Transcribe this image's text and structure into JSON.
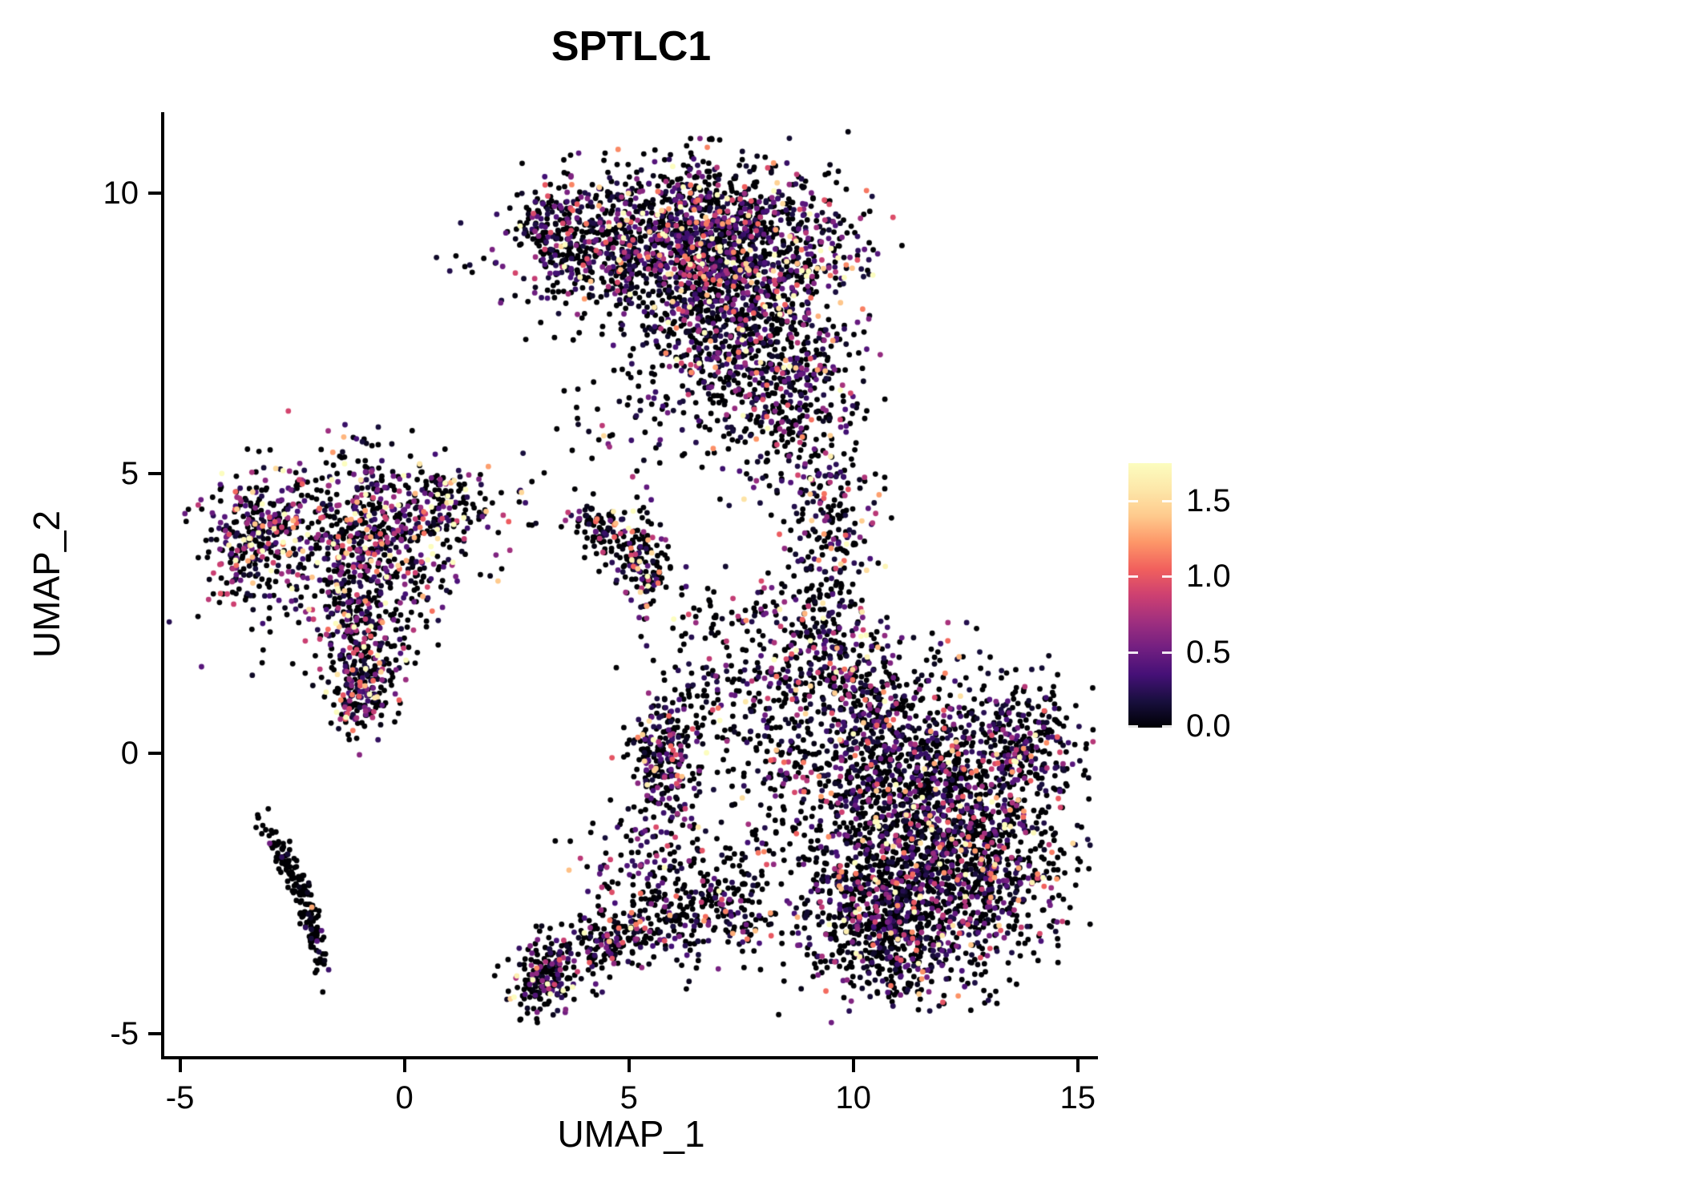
{
  "chart_data": {
    "type": "scatter",
    "title": "SPTLC1",
    "xlabel": "UMAP_1",
    "ylabel": "UMAP_2",
    "xlim": [
      -5.35,
      15.45
    ],
    "ylim": [
      -5.4,
      11.45
    ],
    "x_ticks": [
      {
        "value": -5,
        "label": "-5"
      },
      {
        "value": 0,
        "label": "0"
      },
      {
        "value": 5,
        "label": "5"
      },
      {
        "value": 10,
        "label": "10"
      },
      {
        "value": 15,
        "label": "15"
      }
    ],
    "y_ticks": [
      {
        "value": -5,
        "label": "-5"
      },
      {
        "value": 0,
        "label": "0"
      },
      {
        "value": 5,
        "label": "5"
      },
      {
        "value": 10,
        "label": "10"
      }
    ],
    "grid": false,
    "legend_position": "right",
    "colorbar": {
      "domain": [
        0,
        1.75
      ],
      "ticks": [
        {
          "value": 1.5,
          "label": "1.5"
        },
        {
          "value": 1.0,
          "label": "1.0"
        },
        {
          "value": 0.5,
          "label": "0.5"
        },
        {
          "value": 0.0,
          "label": "0.0"
        }
      ],
      "colormap": "magma",
      "stops": [
        [
          0.0,
          "#000004"
        ],
        [
          0.1,
          "#180f3e"
        ],
        [
          0.2,
          "#451077"
        ],
        [
          0.3,
          "#721f81"
        ],
        [
          0.4,
          "#9f2f7f"
        ],
        [
          0.5,
          "#cd4071"
        ],
        [
          0.6,
          "#f1605d"
        ],
        [
          0.7,
          "#fd9668"
        ],
        [
          0.8,
          "#feca8d"
        ],
        [
          0.9,
          "#fde7a9"
        ],
        [
          1.0,
          "#fcfdbf"
        ]
      ]
    },
    "point_radius_px": 3.4,
    "seed": 42,
    "n_points_approx": 9800,
    "clusters": [
      {
        "name": "top-main-1",
        "n": 900,
        "cx": 7.6,
        "cy": 9.0,
        "sx": 1.25,
        "sy": 0.75,
        "rot": 0,
        "zero": 0.45,
        "mean": 0.5
      },
      {
        "name": "top-main-2",
        "n": 600,
        "cx": 6.0,
        "cy": 9.3,
        "sx": 1.1,
        "sy": 0.6,
        "rot": 0,
        "zero": 0.45,
        "mean": 0.5
      },
      {
        "name": "top-main-3",
        "n": 520,
        "cx": 7.0,
        "cy": 7.6,
        "sx": 1.0,
        "sy": 0.8,
        "rot": 0,
        "zero": 0.5,
        "mean": 0.5
      },
      {
        "name": "top-right-lobe",
        "n": 380,
        "cx": 8.5,
        "cy": 6.6,
        "sx": 0.75,
        "sy": 0.9,
        "rot": 0,
        "zero": 0.5,
        "mean": 0.5
      },
      {
        "name": "top-left-tail",
        "n": 260,
        "cx": 4.1,
        "cy": 8.9,
        "sx": 0.85,
        "sy": 0.65,
        "rot": 0,
        "zero": 0.5,
        "mean": 0.45
      },
      {
        "name": "top-left-streak",
        "n": 130,
        "cx": 3.3,
        "cy": 9.4,
        "sx": 0.45,
        "sy": 0.45,
        "rot": 0,
        "zero": 0.5,
        "mean": 0.45
      },
      {
        "name": "top-under-sparse",
        "n": 90,
        "cx": 6.2,
        "cy": 6.2,
        "sx": 1.3,
        "sy": 0.7,
        "rot": 0,
        "zero": 0.55,
        "mean": 0.45
      },
      {
        "name": "right-main-1",
        "n": 1300,
        "cx": 11.5,
        "cy": -0.6,
        "sx": 1.5,
        "sy": 1.05,
        "rot": 0,
        "zero": 0.55,
        "mean": 0.45
      },
      {
        "name": "right-main-2",
        "n": 800,
        "cx": 12.4,
        "cy": -2.2,
        "sx": 1.15,
        "sy": 0.85,
        "rot": 0,
        "zero": 0.55,
        "mean": 0.45
      },
      {
        "name": "right-lower-left",
        "n": 450,
        "cx": 10.3,
        "cy": -2.7,
        "sx": 0.9,
        "sy": 0.75,
        "rot": 0,
        "zero": 0.55,
        "mean": 0.45
      },
      {
        "name": "right-tip",
        "n": 200,
        "cx": 13.8,
        "cy": 0.2,
        "sx": 0.55,
        "sy": 0.5,
        "rot": 0,
        "zero": 0.55,
        "mean": 0.45
      },
      {
        "name": "right-upper",
        "n": 280,
        "cx": 10.1,
        "cy": 0.9,
        "sx": 0.75,
        "sy": 0.75,
        "rot": 0,
        "zero": 0.5,
        "mean": 0.5
      },
      {
        "name": "right-bottom",
        "n": 220,
        "cx": 11.1,
        "cy": -3.5,
        "sx": 0.85,
        "sy": 0.45,
        "rot": 0,
        "zero": 0.6,
        "mean": 0.4
      },
      {
        "name": "bridge-upper",
        "n": 260,
        "cx": 9.45,
        "cy": 3.9,
        "sx": 0.5,
        "sy": 1.25,
        "rot": 0,
        "zero": 0.5,
        "mean": 0.5
      },
      {
        "name": "bridge-lower",
        "n": 160,
        "cx": 9.0,
        "cy": 2.1,
        "sx": 0.75,
        "sy": 0.8,
        "rot": 0,
        "zero": 0.5,
        "mean": 0.5
      },
      {
        "name": "bridge-left-sparse",
        "n": 120,
        "cx": 8.1,
        "cy": 1.1,
        "sx": 0.7,
        "sy": 0.8,
        "rot": 0,
        "zero": 0.55,
        "mean": 0.45
      },
      {
        "name": "left-main",
        "n": 470,
        "cx": -0.6,
        "cy": 3.9,
        "sx": 1.0,
        "sy": 0.7,
        "rot": 0,
        "zero": 0.45,
        "mean": 0.65
      },
      {
        "name": "left-west",
        "n": 290,
        "cx": -3.35,
        "cy": 3.9,
        "sx": 0.55,
        "sy": 0.6,
        "rot": 0,
        "zero": 0.45,
        "mean": 0.7
      },
      {
        "name": "left-trail",
        "n": 220,
        "cx": -0.9,
        "cy": 2.3,
        "sx": 0.5,
        "sy": 0.7,
        "rot": 0,
        "zero": 0.5,
        "mean": 0.6
      },
      {
        "name": "left-bottom-clump",
        "n": 160,
        "cx": -0.95,
        "cy": 1.1,
        "sx": 0.35,
        "sy": 0.4,
        "rot": 0,
        "zero": 0.45,
        "mean": 0.6
      },
      {
        "name": "left-sparse",
        "n": 200,
        "cx": -1.6,
        "cy": 3.5,
        "sx": 1.3,
        "sy": 1.0,
        "rot": 0,
        "zero": 0.55,
        "mean": 0.6
      },
      {
        "name": "left-east-arm",
        "n": 110,
        "cx": 0.9,
        "cy": 4.4,
        "sx": 0.5,
        "sy": 0.4,
        "rot": 0,
        "zero": 0.5,
        "mean": 0.6
      },
      {
        "name": "left-apex",
        "n": 10,
        "cx": -1.3,
        "cy": 5.6,
        "sx": 0.2,
        "sy": 0.25,
        "rot": 0,
        "zero": 0.3,
        "mean": 0.9
      },
      {
        "name": "lowleft-streak-1",
        "n": 85,
        "cx": -2.7,
        "cy": -1.9,
        "sx": 0.5,
        "sy": 0.11,
        "rot": -55,
        "zero": 0.92,
        "mean": 0.3
      },
      {
        "name": "lowleft-streak-2",
        "n": 95,
        "cx": -2.1,
        "cy": -3.0,
        "sx": 0.55,
        "sy": 0.11,
        "rot": -72,
        "zero": 0.92,
        "mean": 0.3
      },
      {
        "name": "mid-small-1",
        "n": 75,
        "cx": 4.35,
        "cy": 4.1,
        "sx": 0.3,
        "sy": 0.25,
        "rot": 0,
        "zero": 0.55,
        "mean": 0.5
      },
      {
        "name": "mid-small-2",
        "n": 140,
        "cx": 5.35,
        "cy": 3.35,
        "sx": 0.33,
        "sy": 0.45,
        "rot": 0,
        "zero": 0.5,
        "mean": 0.6
      },
      {
        "name": "mid-small-link",
        "n": 30,
        "cx": 4.85,
        "cy": 3.75,
        "sx": 0.35,
        "sy": 0.25,
        "rot": 0,
        "zero": 0.55,
        "mean": 0.5
      },
      {
        "name": "mid-low-clump",
        "n": 230,
        "cx": 5.8,
        "cy": -0.1,
        "sx": 0.42,
        "sy": 0.55,
        "rot": 0,
        "zero": 0.5,
        "mean": 0.55
      },
      {
        "name": "mid-low-sparse",
        "n": 70,
        "cx": 6.4,
        "cy": 0.7,
        "sx": 0.6,
        "sy": 0.55,
        "rot": 0,
        "zero": 0.55,
        "mean": 0.5
      },
      {
        "name": "tail-tip",
        "n": 150,
        "cx": 3.15,
        "cy": -4.0,
        "sx": 0.33,
        "sy": 0.33,
        "rot": 0,
        "zero": 0.6,
        "mean": 0.45
      },
      {
        "name": "tail-body",
        "n": 260,
        "cx": 4.6,
        "cy": -3.35,
        "sx": 0.95,
        "sy": 0.3,
        "rot": 15,
        "zero": 0.6,
        "mean": 0.45
      },
      {
        "name": "tail-join",
        "n": 230,
        "cx": 6.9,
        "cy": -2.8,
        "sx": 0.9,
        "sy": 0.5,
        "rot": 0,
        "zero": 0.6,
        "mean": 0.45
      },
      {
        "name": "tail-upper-sparse",
        "n": 130,
        "cx": 5.6,
        "cy": -1.9,
        "sx": 0.8,
        "sy": 0.55,
        "rot": 0,
        "zero": 0.6,
        "mean": 0.45
      },
      {
        "name": "sparse-9",
        "n": 60,
        "cx": 8.3,
        "cy": -0.8,
        "sx": 0.7,
        "sy": 0.8,
        "rot": 0,
        "zero": 0.6,
        "mean": 0.45
      },
      {
        "name": "sparse-left-of-top",
        "n": 8,
        "cx": 1.3,
        "cy": 8.9,
        "sx": 0.3,
        "sy": 0.25,
        "rot": 0,
        "zero": 0.6,
        "mean": 0.4
      },
      {
        "name": "sparse-mid-gap",
        "n": 14,
        "cx": 2.7,
        "cy": 4.4,
        "sx": 0.5,
        "sy": 0.5,
        "rot": 0,
        "zero": 0.6,
        "mean": 0.4
      },
      {
        "name": "sparse-under-top",
        "n": 18,
        "cx": 4.8,
        "cy": 5.6,
        "sx": 0.7,
        "sy": 0.45,
        "rot": 0,
        "zero": 0.55,
        "mean": 0.45
      },
      {
        "name": "mid-right-sparse",
        "n": 60,
        "cx": 6.9,
        "cy": 1.9,
        "sx": 0.6,
        "sy": 0.7,
        "rot": 0,
        "zero": 0.55,
        "mean": 0.5
      }
    ],
    "colors": {
      "background": "#ffffff",
      "axis": "#000000",
      "text": "#000000"
    }
  }
}
